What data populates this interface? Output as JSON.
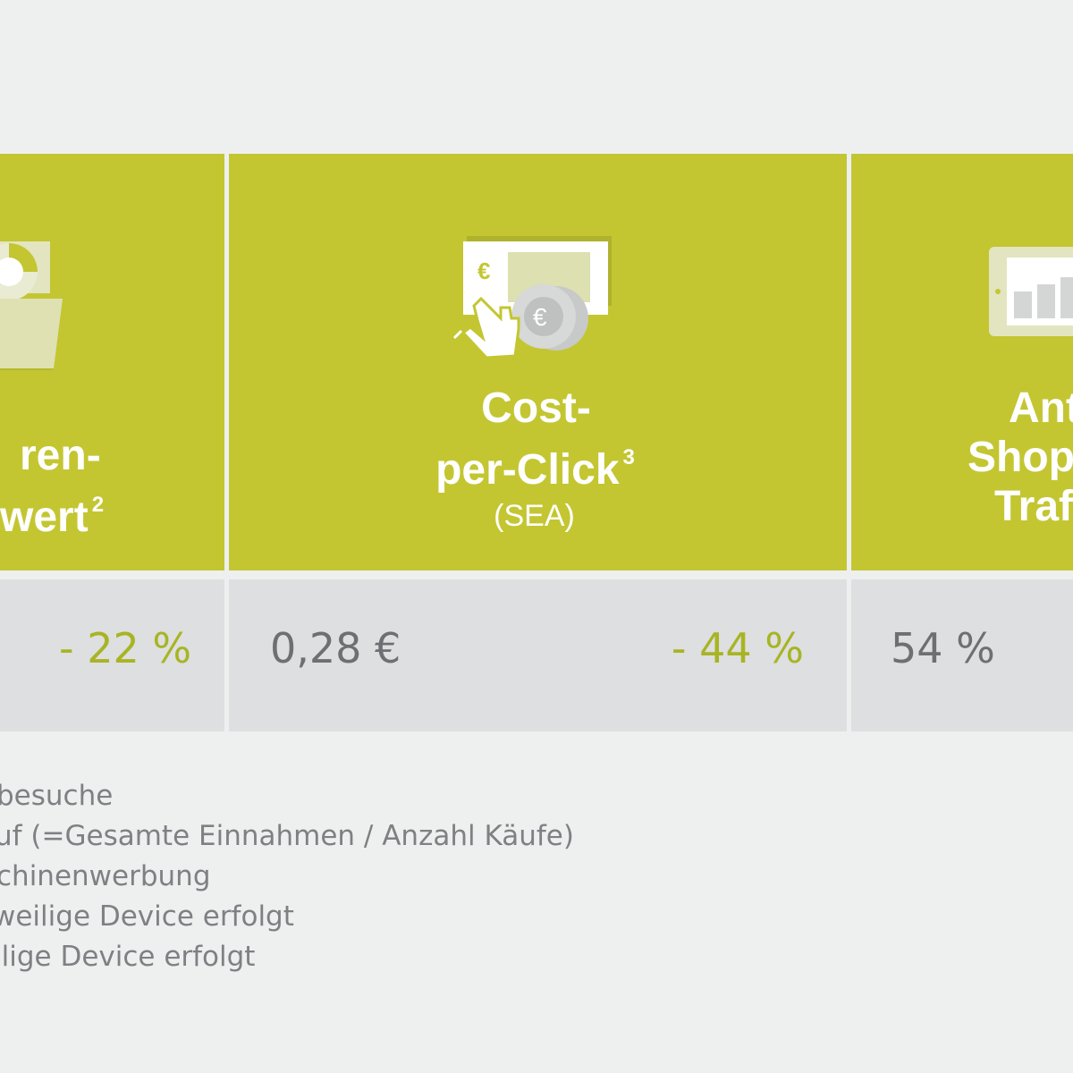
{
  "columns": [
    {
      "title_lines": [
        "ren-",
        "wert"
      ],
      "footnote_ref": "2",
      "value": "",
      "change": "- 22 %",
      "icon": "folder-chart-icon"
    },
    {
      "title_lines": [
        "Cost-",
        "per-Click"
      ],
      "footnote_ref": "3",
      "subtitle": "(SEA)",
      "value": "0,28 €",
      "change": "- 44 %",
      "icon": "euro-click-icon"
    },
    {
      "title_lines": [
        "Ant",
        "Shop",
        "Traf"
      ],
      "value": "54 %",
      "icon": "tablet-chart-icon"
    }
  ],
  "footnotes": [
    "besuche",
    "uf (=Gesamte Einnahmen / Anzahl Käufe)",
    "chinenwerbung",
    "weilige Device erfolgt",
    "ilige Device erfolgt"
  ],
  "colors": {
    "accent": "#c3c631",
    "positive_change": "#a8b424",
    "value_text": "#6d7072",
    "cell_bg": "#dedfe0",
    "page_bg": "#eef0f0"
  }
}
